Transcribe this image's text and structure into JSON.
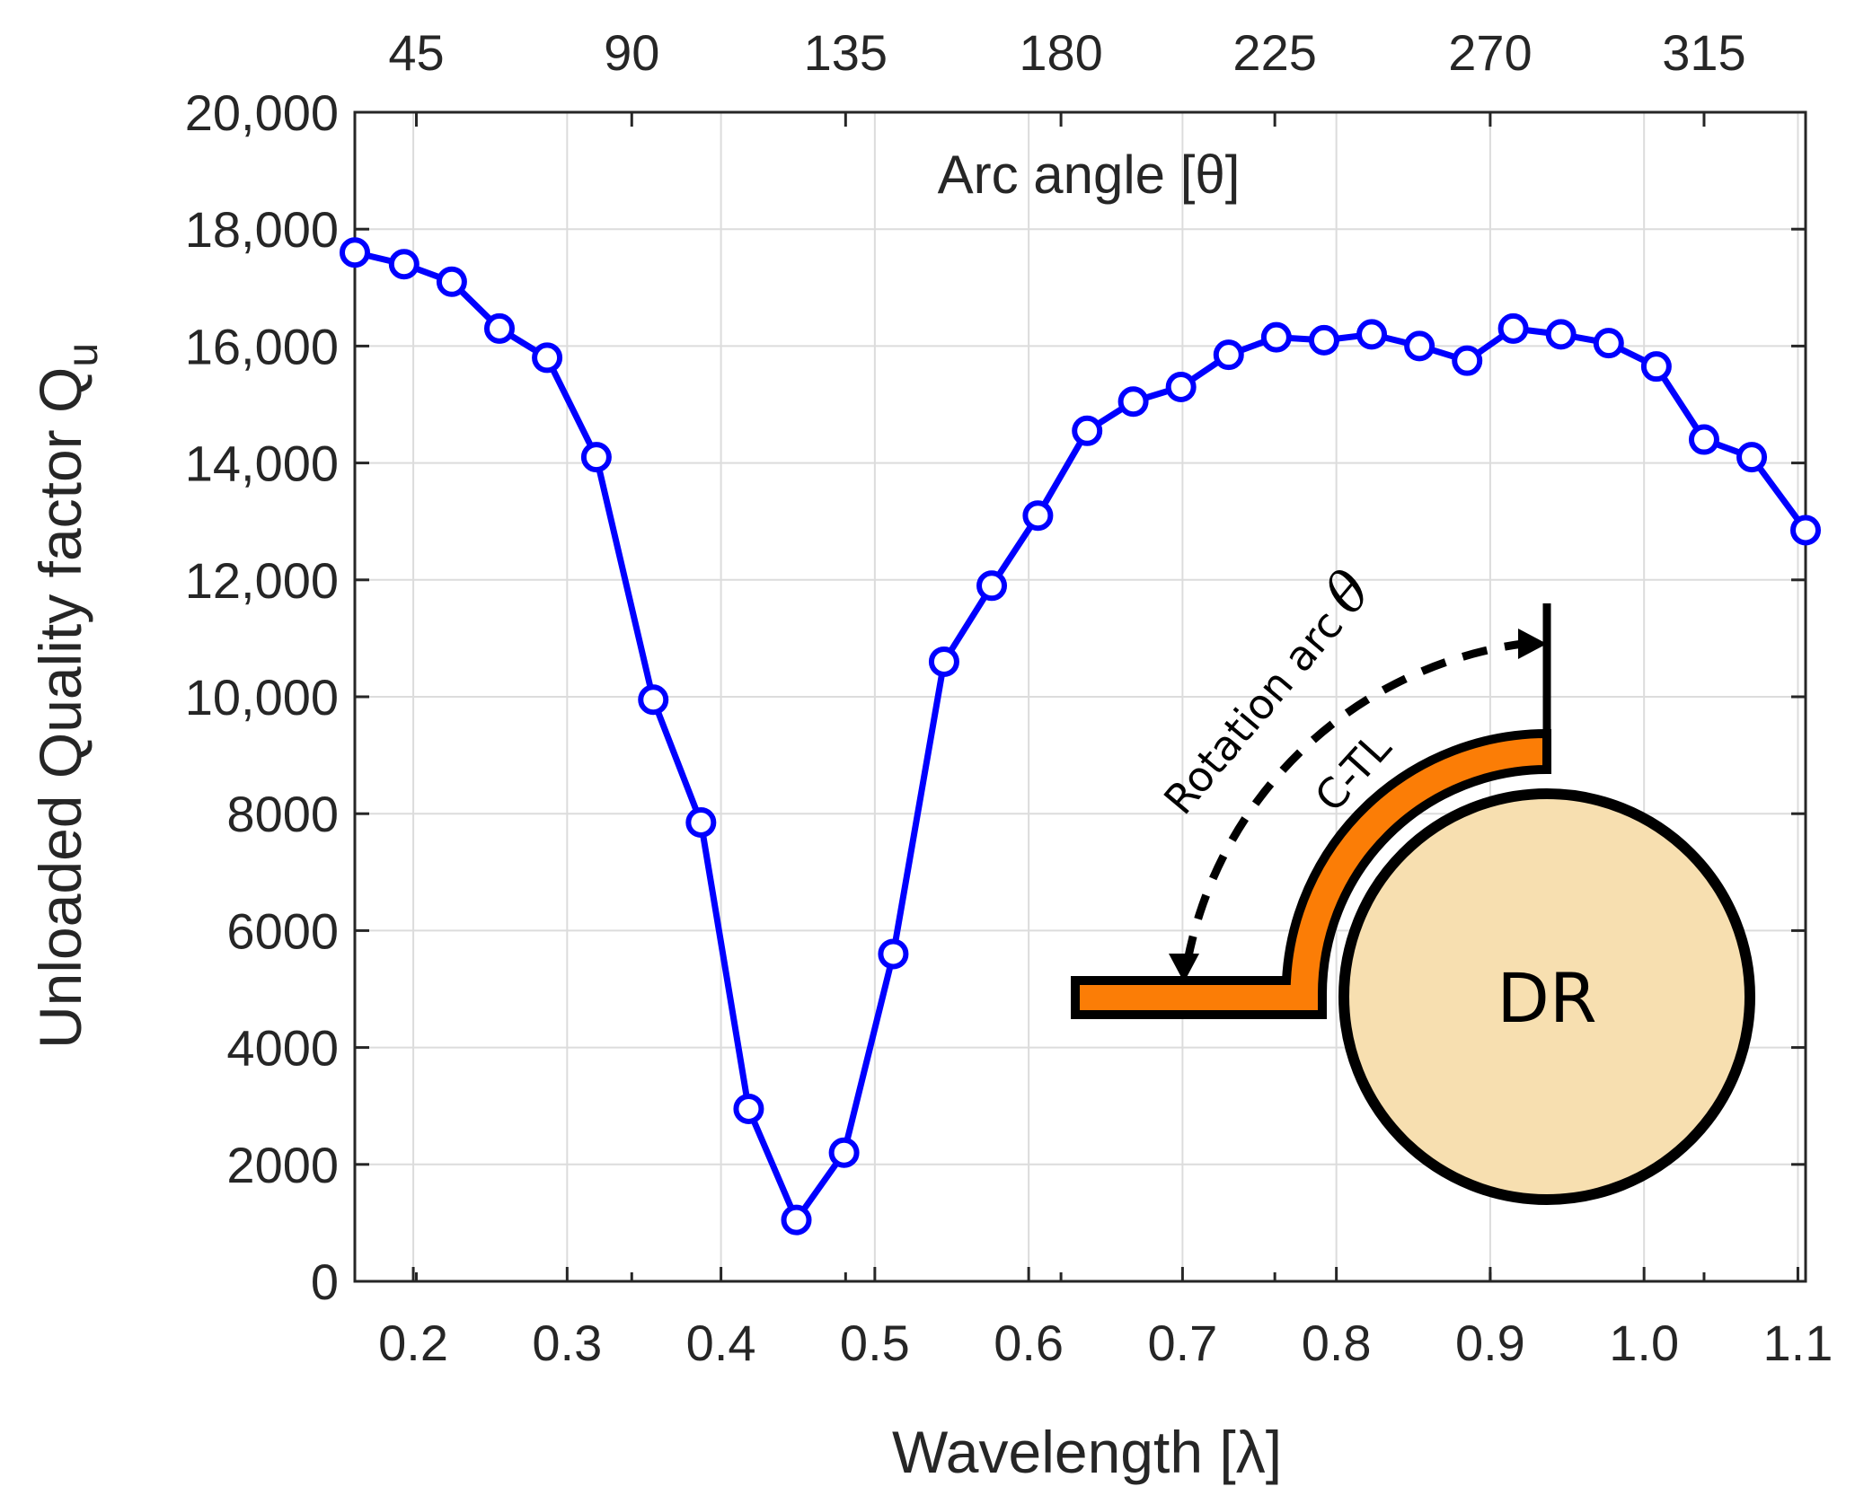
{
  "chart_data": {
    "type": "line",
    "xlabel": "Wavelength [λ]",
    "ylabel": "Unloaded Quality factor Q",
    "ylabel_subscript": "u",
    "top_axis_label": "Arc angle [θ]",
    "xlim": [
      0.162,
      1.105
    ],
    "ylim": [
      0,
      20000
    ],
    "x_ticks": [
      0.2,
      0.3,
      0.4,
      0.5,
      0.6,
      0.7,
      0.8,
      0.9,
      1.0,
      1.1
    ],
    "x_tick_labels": [
      "0.2",
      "0.3",
      "0.4",
      "0.5",
      "0.6",
      "0.7",
      "0.8",
      "0.9",
      "1.0",
      "1.1"
    ],
    "y_ticks": [
      0,
      2000,
      4000,
      6000,
      8000,
      10000,
      12000,
      14000,
      16000,
      18000,
      20000
    ],
    "y_tick_labels": [
      "0",
      "2000",
      "4000",
      "6000",
      "8000",
      "10,000",
      "12,000",
      "14,000",
      "16,000",
      "18,000",
      "20,000"
    ],
    "top_ticks_x": [
      0.202,
      0.342,
      0.481,
      0.621,
      0.76,
      0.9,
      1.039
    ],
    "top_tick_labels": [
      "45",
      "90",
      "135",
      "180",
      "225",
      "270",
      "315"
    ],
    "grid": true,
    "series": [
      {
        "name": "Qu",
        "color": "#0000ff",
        "marker": "circle",
        "x": [
          0.162,
          0.194,
          0.225,
          0.256,
          0.287,
          0.319,
          0.356,
          0.387,
          0.418,
          0.449,
          0.48,
          0.512,
          0.545,
          0.576,
          0.606,
          0.638,
          0.668,
          0.699,
          0.73,
          0.761,
          0.792,
          0.823,
          0.854,
          0.885,
          0.915,
          0.946,
          0.977,
          1.008,
          1.039,
          1.07,
          1.105
        ],
        "values": [
          17600,
          17400,
          17100,
          16300,
          15800,
          14100,
          9950,
          7850,
          2950,
          1050,
          2200,
          5600,
          10600,
          11900,
          13100,
          14550,
          15050,
          15300,
          15850,
          16150,
          16100,
          16200,
          16000,
          15750,
          16300,
          16200,
          16050,
          15650,
          14400,
          14100,
          12850
        ]
      }
    ],
    "inset": {
      "rotation_label": "Rotation arc",
      "theta_symbol": "θ",
      "line_label": "C-TL",
      "resonator_label": "DR",
      "resonator_fill": "#f7dfb0",
      "line_fill": "#fb7d06"
    }
  }
}
